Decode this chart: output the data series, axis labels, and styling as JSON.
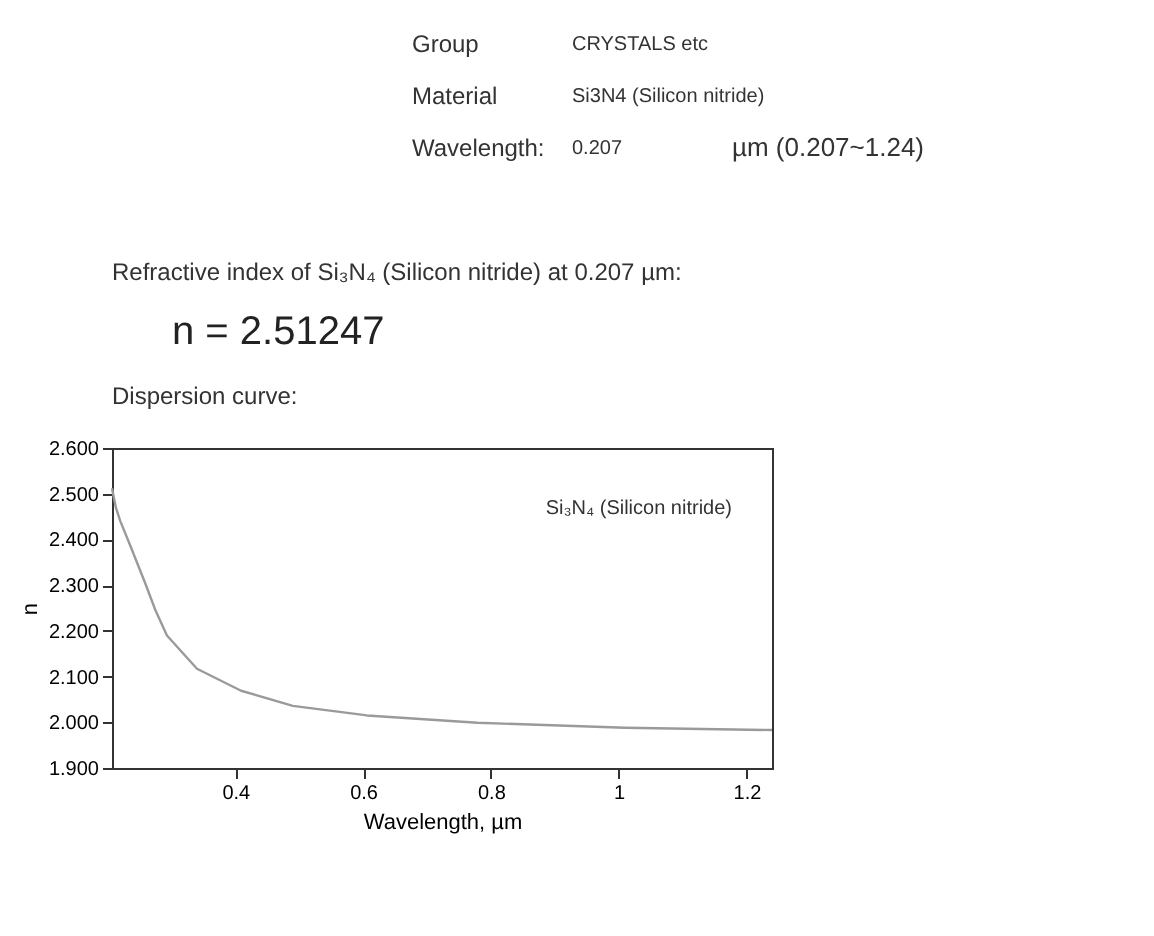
{
  "chart_data": {
    "type": "line",
    "title": "Dispersion curve:",
    "annotations": [
      "Group",
      "CRYSTALS etc",
      "Material",
      "Si3N4 (Silicon nitride)",
      "Wavelength:",
      "0.207",
      "µm  (0.207~1.24)",
      "Refractive index of Si₃N₄ (Silicon nitride) at 0.207 µm:",
      "n = 2.51247",
      "Si₃N₄ (Silicon nitride)"
    ],
    "xlabel": "Wavelength, µm",
    "ylabel": "n",
    "x": [
      0.207,
      0.213,
      0.22,
      0.236,
      0.259,
      0.275,
      0.293,
      0.34,
      0.409,
      0.49,
      0.606,
      0.779,
      1.01,
      1.24
    ],
    "series": [
      {
        "color": "#9a9a9a",
        "values": [
          2.512,
          2.47,
          2.44,
          2.385,
          2.304,
          2.245,
          2.19,
          2.117,
          2.069,
          2.036,
          2.015,
          1.999,
          1.988,
          1.983
        ]
      }
    ],
    "xlim": [
      0.207,
      1.24
    ],
    "xticks": [
      0.4,
      0.6,
      0.8,
      1,
      1.2
    ],
    "ylim": [
      1.9,
      2.6
    ],
    "yticks": [
      {
        "value": 1.9,
        "label": "1.900"
      },
      {
        "value": 2.0,
        "label": "2.000"
      },
      {
        "value": 2.1,
        "label": "2.100"
      },
      {
        "value": 2.2,
        "label": "2.200"
      },
      {
        "value": 2.3,
        "label": "2.300"
      },
      {
        "value": 2.4,
        "label": "2.400"
      },
      {
        "value": 2.5,
        "label": "2.500"
      },
      {
        "value": 2.6,
        "label": "2.600"
      }
    ],
    "grid": false,
    "marker": "none",
    "line_style": "solid"
  }
}
